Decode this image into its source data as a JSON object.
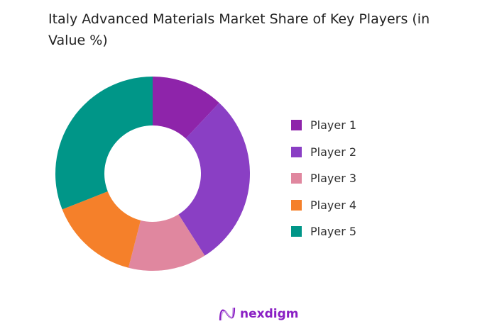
{
  "chart_data": {
    "type": "pie",
    "donut": true,
    "title": "Italy Advanced Materials Market Share of Key Players (in Value %)",
    "categories": [
      "Player 1",
      "Player 2",
      "Player 3",
      "Player 4",
      "Player 5"
    ],
    "values": [
      12,
      29,
      13,
      15,
      31
    ],
    "unit": "%",
    "colors": [
      "#8e24aa",
      "#8a3fc4",
      "#e0879f",
      "#f5802a",
      "#009688"
    ],
    "legend_position": "right"
  },
  "brand": {
    "name": "nexdigm",
    "color": "#8a1fc4"
  }
}
